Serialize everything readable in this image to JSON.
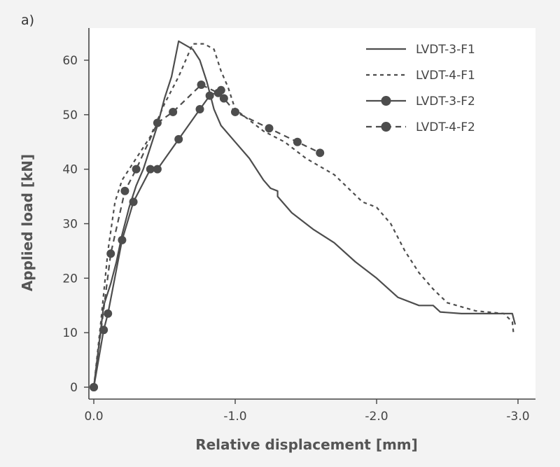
{
  "chart_data": {
    "type": "line",
    "panel_label": "a)",
    "title": "",
    "xlabel": "Relative displacement [mm]",
    "ylabel": "Applied load [kN]",
    "xlim": [
      0.0,
      -3.0
    ],
    "ylim": [
      0,
      67
    ],
    "x_ticks": [
      0.0,
      -1.0,
      -2.0,
      -3.0
    ],
    "x_tick_labels": [
      "0.0",
      "-1.0",
      "-2.0",
      "-3.0"
    ],
    "y_ticks": [
      0,
      10,
      20,
      30,
      40,
      50,
      60
    ],
    "y_tick_labels": [
      "0",
      "10",
      "20",
      "30",
      "40",
      "50",
      "60"
    ],
    "grid": false,
    "legend_position": "top-right",
    "colors": {
      "series": "#4d4d4d",
      "background": "#f3f3f3",
      "axis": "#444444"
    },
    "series": [
      {
        "name": "LVDT-3-F1",
        "style": "solid",
        "marker": "none",
        "x": [
          0,
          -0.07,
          -0.12,
          -0.16,
          -0.2,
          -0.25,
          -0.3,
          -0.35,
          -0.4,
          -0.45,
          -0.5,
          -0.55,
          -0.6,
          -0.7,
          -0.75,
          -0.8,
          -0.85,
          -0.9,
          -1.0,
          -1.1,
          -1.2,
          -1.25,
          -1.3,
          -1.3,
          -1.4,
          -1.55,
          -1.7,
          -1.85,
          -2.0,
          -2.15,
          -2.3,
          -2.4,
          -2.45,
          -2.6,
          -2.8,
          -2.96,
          -2.97,
          -2.98
        ],
        "y": [
          0,
          15,
          19,
          23,
          28,
          33,
          37,
          40,
          44,
          48,
          53,
          57,
          63.5,
          62,
          60,
          56,
          51,
          48,
          45,
          42,
          38,
          36.5,
          36,
          35,
          32,
          29,
          26.5,
          23,
          20,
          16.5,
          15,
          15,
          13.8,
          13.5,
          13.5,
          13.5,
          12.5,
          11.5
        ]
      },
      {
        "name": "LVDT-4-F1",
        "style": "dashed",
        "marker": "none",
        "x": [
          0,
          -0.05,
          -0.1,
          -0.15,
          -0.2,
          -0.3,
          -0.4,
          -0.5,
          -0.6,
          -0.7,
          -0.78,
          -0.85,
          -0.9,
          -0.95,
          -1.0,
          -1.1,
          -1.2,
          -1.35,
          -1.5,
          -1.7,
          -1.9,
          -2.0,
          -2.1,
          -2.2,
          -2.3,
          -2.4,
          -2.5,
          -2.7,
          -2.9,
          -2.96,
          -2.97
        ],
        "y": [
          0,
          12,
          25,
          34,
          38,
          42,
          46,
          52,
          57,
          63,
          63,
          62,
          58,
          55,
          51,
          49,
          47,
          45,
          42,
          39,
          34,
          33,
          30,
          25,
          21,
          18,
          15.5,
          14,
          13.5,
          12,
          9.5
        ]
      },
      {
        "name": "LVDT-3-F2",
        "style": "solid",
        "marker": "circle",
        "x": [
          0,
          -0.07,
          -0.1,
          -0.2,
          -0.28,
          -0.4,
          -0.45,
          -0.6,
          -0.75,
          -0.82,
          -0.9
        ],
        "y": [
          0,
          10.5,
          13.5,
          27,
          34,
          40,
          40,
          45.5,
          51,
          53.5,
          54.5
        ]
      },
      {
        "name": "LVDT-4-F2",
        "style": "dashed",
        "marker": "circle",
        "x": [
          0,
          -0.12,
          -0.22,
          -0.3,
          -0.45,
          -0.56,
          -0.76,
          -0.88,
          -0.92,
          -1.0,
          -1.24,
          -1.44,
          -1.6
        ],
        "y": [
          0,
          24.5,
          36,
          40,
          48.5,
          50.5,
          55.5,
          54,
          53,
          50.5,
          47.5,
          45,
          43
        ]
      }
    ]
  }
}
